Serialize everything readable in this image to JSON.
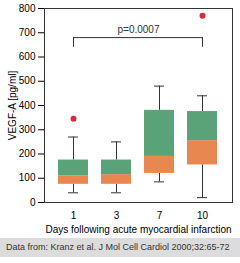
{
  "chart_data": {
    "type": "box",
    "x_label": "Days following acute myocardial infarction",
    "y_label": "VEGF-A [pg/ml]",
    "categories": [
      "1",
      "3",
      "7",
      "10"
    ],
    "whisker_low": [
      40,
      40,
      85,
      20
    ],
    "q1": [
      75,
      75,
      120,
      155
    ],
    "median": [
      110,
      115,
      190,
      255
    ],
    "q3": [
      175,
      175,
      380,
      375
    ],
    "whisker_high": [
      270,
      250,
      480,
      440
    ],
    "outliers": [
      [
        345
      ],
      [],
      [],
      [
        770
      ]
    ],
    "colors": {
      "lower": "#e8874f",
      "upper": "#5aa278",
      "outlier": "#d62b3b"
    },
    "ylim": [
      0,
      800
    ],
    "yticks": [
      0,
      100,
      200,
      300,
      400,
      500,
      600,
      700,
      800
    ],
    "annotation": {
      "text": "p=0.0007",
      "from": "1",
      "to": "10",
      "y": 680,
      "y_low": 640
    },
    "caption": "Data from: Kranz et al. J Mol Cell Cardiol 2000;32:65-72"
  }
}
